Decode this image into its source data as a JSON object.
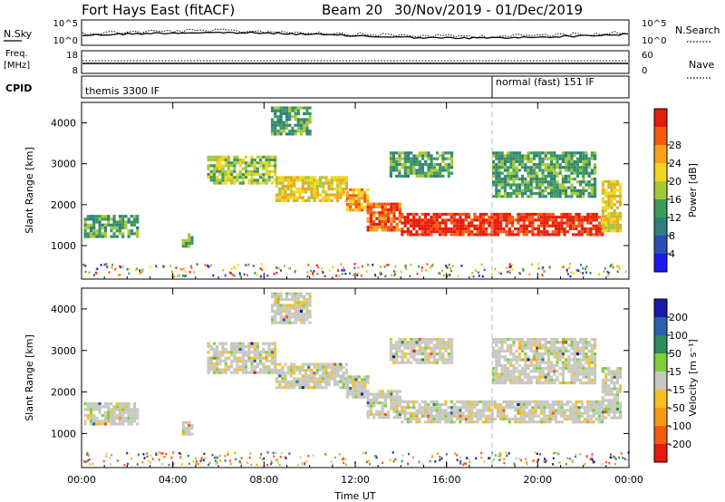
{
  "header": {
    "station": "Fort Hays East (fitACF)",
    "beam": "Beam 20",
    "dates": "30/Nov/2019 - 01/Dec/2019"
  },
  "strips": {
    "nsky_label": "N.Sky",
    "nsky_ticks": [
      "10^5",
      "10^0"
    ],
    "nsearch_label": "N.Search",
    "nsearch_ticks": [
      "10^5",
      "10^0"
    ],
    "freq_label": "Freq.",
    "freq_unit": "[MHz]",
    "freq_ticks": [
      "18",
      "8"
    ],
    "nave_label": "Nave",
    "nave_ticks": [
      "60",
      "0"
    ],
    "cpid_label": "CPID",
    "cpid_segments": [
      {
        "label": "themis 3300 IF",
        "start_hour": 0
      },
      {
        "label": "normal (fast) 151 IF",
        "start_hour": 18
      }
    ]
  },
  "chart_data": [
    {
      "type": "heatmap",
      "name": "power",
      "ylabel": "Slant Range [km]",
      "xlabel": "",
      "x_ticks": [
        "00:00",
        "04:00",
        "08:00",
        "12:00",
        "16:00",
        "20:00",
        "00:00"
      ],
      "x_range_hours": [
        0,
        24
      ],
      "y_ticks": [
        1000,
        2000,
        3000,
        4000
      ],
      "y_range_km": [
        180,
        4500
      ],
      "colorbar_label": "Power [dB]",
      "colorbar_ticks": [
        4,
        8,
        12,
        16,
        20,
        24,
        28
      ],
      "colorbar_colors": [
        "#1a1aee",
        "#2a4fb4",
        "#2f7f7f",
        "#3c9a5a",
        "#a5c83a",
        "#f5d51a",
        "#f7a21a",
        "#f55a10",
        "#e81a0a"
      ],
      "regions": [
        {
          "t0": 0.1,
          "t1": 2.4,
          "r0": 1250,
          "r1": 1750,
          "level": 3
        },
        {
          "t0": 4.4,
          "t1": 4.9,
          "r0": 1000,
          "r1": 1300,
          "level": 3
        },
        {
          "t0": 5.5,
          "t1": 8.5,
          "r0": 2500,
          "r1": 3200,
          "level": 4
        },
        {
          "t0": 8.5,
          "t1": 11.6,
          "r0": 2100,
          "r1": 2700,
          "level": 5
        },
        {
          "t0": 11.6,
          "t1": 12.5,
          "r0": 1900,
          "r1": 2400,
          "level": 6
        },
        {
          "t0": 12.5,
          "t1": 14.0,
          "r0": 1400,
          "r1": 2050,
          "level": 7
        },
        {
          "t0": 14.0,
          "t1": 22.8,
          "r0": 1250,
          "r1": 1800,
          "level": 8
        },
        {
          "t0": 22.8,
          "t1": 23.6,
          "r0": 1350,
          "r1": 2600,
          "level": 5
        },
        {
          "t0": 8.3,
          "t1": 10.0,
          "r0": 3700,
          "r1": 4400,
          "level": 3
        },
        {
          "t0": 13.5,
          "t1": 16.2,
          "r0": 2700,
          "r1": 3300,
          "level": 3
        },
        {
          "t0": 18.0,
          "t1": 22.5,
          "r0": 2200,
          "r1": 3300,
          "level": 3
        }
      ],
      "cpid_change_hour": 18
    },
    {
      "type": "heatmap",
      "name": "velocity",
      "ylabel": "Slant Range [km]",
      "xlabel": "Time UT",
      "x_ticks": [
        "00:00",
        "04:00",
        "08:00",
        "12:00",
        "16:00",
        "20:00",
        "00:00"
      ],
      "x_range_hours": [
        0,
        24
      ],
      "y_ticks": [
        1000,
        2000,
        3000,
        4000
      ],
      "y_range_km": [
        180,
        4500
      ],
      "colorbar_label": "Velocity [m s⁻¹]",
      "colorbar_ticks": [
        200,
        100,
        50,
        15,
        -15,
        -50,
        -100,
        -200
      ],
      "colorbar_colors": [
        "#1a1aaa",
        "#2f5fb0",
        "#2e8a5a",
        "#7fcf3a",
        "#c8c8c0",
        "#f5c020",
        "#f59a10",
        "#f55a10",
        "#e81a0a"
      ],
      "regions": [
        {
          "t0": 0.1,
          "t1": 2.4,
          "r0": 1250,
          "r1": 1750,
          "level": 4
        },
        {
          "t0": 4.4,
          "t1": 4.9,
          "r0": 1000,
          "r1": 1300,
          "level": 4
        },
        {
          "t0": 5.5,
          "t1": 8.5,
          "r0": 2500,
          "r1": 3200,
          "level": 4
        },
        {
          "t0": 8.5,
          "t1": 11.6,
          "r0": 2100,
          "r1": 2700,
          "level": 4
        },
        {
          "t0": 11.6,
          "t1": 12.5,
          "r0": 1900,
          "r1": 2400,
          "level": 4
        },
        {
          "t0": 12.5,
          "t1": 14.0,
          "r0": 1400,
          "r1": 2050,
          "level": 4
        },
        {
          "t0": 14.0,
          "t1": 22.8,
          "r0": 1250,
          "r1": 1800,
          "level": 4
        },
        {
          "t0": 22.8,
          "t1": 23.6,
          "r0": 1350,
          "r1": 2600,
          "level": 5
        },
        {
          "t0": 8.3,
          "t1": 10.0,
          "r0": 3700,
          "r1": 4400,
          "level": 4
        },
        {
          "t0": 13.5,
          "t1": 16.2,
          "r0": 2700,
          "r1": 3300,
          "level": 4
        },
        {
          "t0": 18.0,
          "t1": 22.5,
          "r0": 2200,
          "r1": 3300,
          "level": 5
        }
      ],
      "cpid_change_hour": 18
    }
  ]
}
